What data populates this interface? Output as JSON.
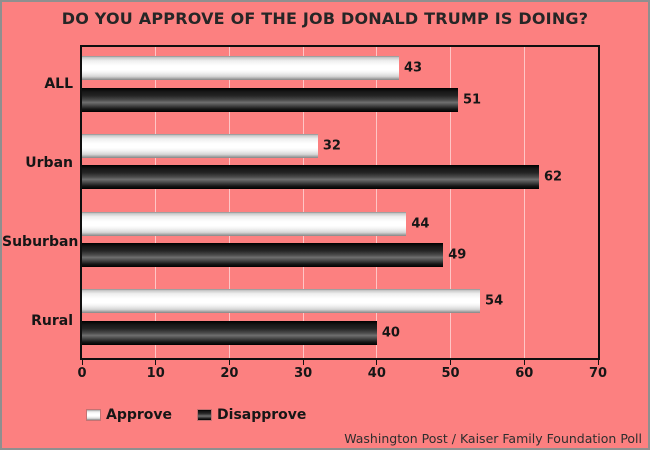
{
  "title": "DO YOU APPROVE OF THE JOB DONALD TRUMP IS DOING?",
  "source": "Washington Post / Kaiser Family Foundation Poll",
  "colors": {
    "background": "#fc8080",
    "plot_border": "#0f0f0f",
    "gridline": "rgba(255,255,255,0.55)",
    "text": "#161616",
    "approve_bar": "#ffffff",
    "disapprove_bar": "#111111"
  },
  "chart_data": {
    "type": "bar",
    "orientation": "horizontal",
    "title": "DO YOU APPROVE OF THE JOB DONALD TRUMP IS DOING?",
    "categories": [
      "ALL",
      "Urban",
      "Suburban",
      "Rural"
    ],
    "series": [
      {
        "name": "Approve",
        "color": "white",
        "values": [
          43,
          32,
          44,
          54
        ]
      },
      {
        "name": "Disapprove",
        "color": "black",
        "values": [
          51,
          62,
          49,
          40
        ]
      }
    ],
    "xlim": [
      0,
      70
    ],
    "xticks": [
      0,
      10,
      20,
      30,
      40,
      50,
      60,
      70
    ],
    "grid": true,
    "legend_position": "bottom-left",
    "data_labels": true,
    "note": "Washington Post / Kaiser Family Foundation Poll"
  }
}
